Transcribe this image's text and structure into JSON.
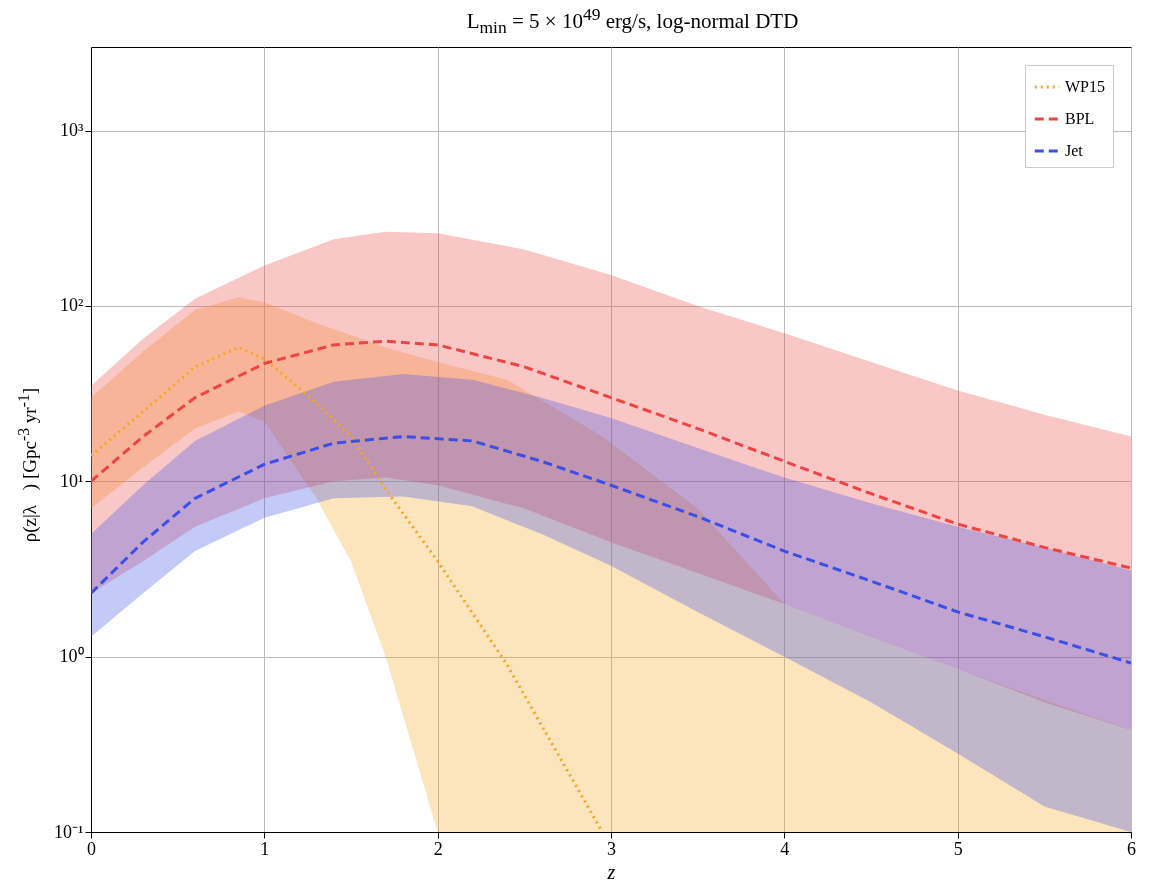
{
  "chart_data": {
    "type": "line",
    "title": "L$_{min}$ = 5 × 10$^{49}$ erg/s, log-normal DTD",
    "xlabel": "z",
    "ylabel": "ρ(z|λ⃗) [Gpc$^{-3}$ yr$^{-1}$]",
    "log": "y",
    "grid": true,
    "legend": "top right",
    "marker": "none",
    "xlim": [
      0,
      6
    ],
    "xticks": [
      0,
      1,
      2,
      3,
      4,
      5,
      6
    ],
    "ylim": [
      0.1,
      3000
    ],
    "yticks": [
      {
        "value": 0.1,
        "label": "10⁻¹"
      },
      {
        "value": 1,
        "label": "10⁰"
      },
      {
        "value": 10,
        "label": "10¹"
      },
      {
        "value": 100,
        "label": "10²"
      },
      {
        "value": 1000,
        "label": "10³"
      }
    ],
    "series": [
      {
        "name": "WP15",
        "color": "#f5a623",
        "line_style": "dotted",
        "x": [
          0,
          0.3,
          0.6,
          0.85,
          1.0,
          1.3,
          1.5,
          1.7,
          2.0,
          2.4,
          2.95,
          3.5,
          4.0,
          5.0,
          6.0
        ],
        "values": [
          14,
          25,
          45,
          58,
          50,
          28,
          18,
          9,
          3.5,
          0.9,
          0.1,
          null,
          null,
          null,
          null
        ],
        "lower": [
          7,
          12,
          20,
          25,
          22,
          8,
          3.5,
          1,
          0.1,
          0.1,
          0.1,
          0.1,
          0.1,
          0.1,
          0.1
        ],
        "upper": [
          30,
          55,
          95,
          112,
          105,
          80,
          68,
          58,
          48,
          38,
          18,
          7,
          2,
          0.85,
          0.38
        ]
      },
      {
        "name": "BPL",
        "color": "#ef4444",
        "line_style": "dashed",
        "x": [
          0,
          0.3,
          0.6,
          1.0,
          1.4,
          1.7,
          2.0,
          2.5,
          3.0,
          3.5,
          4.0,
          4.5,
          5.0,
          5.5,
          6.0
        ],
        "values": [
          10,
          18,
          30,
          47,
          60,
          63,
          60,
          45,
          30,
          20,
          13,
          8.5,
          5.7,
          4.2,
          3.2
        ],
        "lower": [
          2.3,
          3.5,
          5.5,
          8,
          10,
          10.5,
          9.5,
          7,
          4.5,
          3,
          2,
          1.3,
          0.85,
          0.55,
          0.38
        ],
        "upper": [
          35,
          65,
          110,
          170,
          240,
          265,
          260,
          210,
          150,
          100,
          70,
          48,
          33,
          24,
          18
        ]
      },
      {
        "name": "Jet",
        "color": "#3b4ee8",
        "line_style": "dashed",
        "x": [
          0,
          0.3,
          0.6,
          1.0,
          1.4,
          1.8,
          2.2,
          2.6,
          3.0,
          3.5,
          4.0,
          4.5,
          5.0,
          5.5,
          6.0
        ],
        "values": [
          2.3,
          4.5,
          8,
          12.5,
          16.5,
          18,
          17,
          13,
          9.5,
          6.3,
          4,
          2.7,
          1.8,
          1.3,
          0.92
        ],
        "lower": [
          1.3,
          2.3,
          4,
          6.2,
          8,
          8.2,
          7.2,
          5,
          3.3,
          1.8,
          1.0,
          0.55,
          0.28,
          0.14,
          0.1
        ],
        "upper": [
          5,
          9.5,
          17,
          27,
          37,
          41,
          38,
          30,
          23,
          15.5,
          10.5,
          7.5,
          5.5,
          4.2,
          3.1
        ]
      }
    ]
  }
}
